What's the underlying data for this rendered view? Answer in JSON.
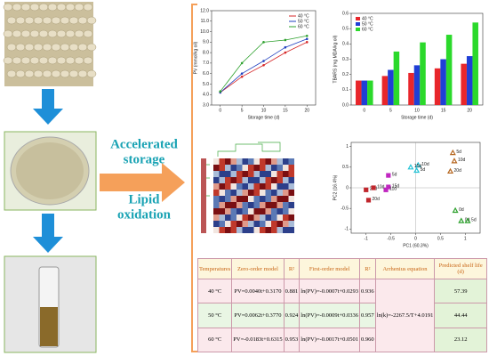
{
  "labels": {
    "accelerated": "Accelerated",
    "storage": "storage",
    "lipid": "Lipid",
    "oxidation": "oxidation"
  },
  "chart_data": [
    {
      "type": "line",
      "xlabel": "Storage time (d)",
      "ylabel": "PV (mmol/kg oil)",
      "x": [
        0,
        5,
        10,
        15,
        20
      ],
      "xlim": [
        -2,
        22
      ],
      "xticks": [
        0,
        5,
        10,
        15,
        20
      ],
      "ylim": [
        3,
        12
      ],
      "yticks": [
        {
          "value": 3,
          "label": "3.0"
        },
        {
          "value": 4,
          "label": "4.0"
        },
        {
          "value": 5,
          "label": "5.0"
        },
        {
          "value": 6,
          "label": "6.0"
        },
        {
          "value": 7,
          "label": "7.0"
        },
        {
          "value": 8,
          "label": "8.0"
        },
        {
          "value": 9,
          "label": "9.0"
        },
        {
          "value": 10,
          "label": "10.0"
        },
        {
          "value": 11,
          "label": "11.0"
        },
        {
          "value": 12,
          "label": "12.0"
        }
      ],
      "series": [
        {
          "name": "40 °C",
          "color": "#d62728",
          "values": [
            4.2,
            5.7,
            6.8,
            8.0,
            9.0
          ]
        },
        {
          "name": "50 °C",
          "color": "#1f3fbf",
          "values": [
            4.2,
            6.0,
            7.2,
            8.5,
            9.3
          ]
        },
        {
          "name": "60 °C",
          "color": "#2ca02c",
          "values": [
            4.3,
            7.0,
            9.0,
            9.2,
            9.6
          ]
        }
      ]
    },
    {
      "type": "bar",
      "xlabel": "Storage time (d)",
      "ylabel": "TBARS (mg MDA/kg oil)",
      "categories": [
        "0",
        "5",
        "10",
        "15",
        "20"
      ],
      "ylim": [
        0,
        0.6
      ],
      "yticks": [
        {
          "value": 0,
          "label": "0.0"
        },
        0.1,
        0.2,
        0.3,
        0.4,
        0.5,
        0.6
      ],
      "series": [
        {
          "name": "40 °C",
          "color": "#e8262b",
          "values": [
            0.16,
            0.19,
            0.21,
            0.24,
            0.27
          ]
        },
        {
          "name": "50 °C",
          "color": "#1f3fd6",
          "values": [
            0.16,
            0.23,
            0.26,
            0.3,
            0.32
          ]
        },
        {
          "name": "60 °C",
          "color": "#2bd92b",
          "values": [
            0.16,
            0.35,
            0.41,
            0.46,
            0.54
          ]
        }
      ]
    },
    {
      "type": "scatter",
      "xlabel": "PC1 (60.3%)",
      "ylabel": "PC2 (16.4%)",
      "xlim": [
        -1.3,
        1.3
      ],
      "xticks": [
        -1,
        -0.5,
        0,
        0.5,
        1
      ],
      "ylim": [
        -1.1,
        1.1
      ],
      "yticks": [
        -1,
        -0.5,
        0,
        0.5,
        1
      ],
      "series": [
        {
          "color": "#b5651d",
          "marker": "triangle",
          "x": [
            0.75,
            0.78,
            0.7
          ],
          "values": [
            0.85,
            0.65,
            0.4
          ],
          "point_labels": [
            "5d",
            "10d",
            "20d"
          ]
        },
        {
          "color": "#22c3d6",
          "marker": "triangle",
          "x": [
            0.05,
            -0.1,
            0.02
          ],
          "values": [
            0.55,
            0.5,
            0.42
          ],
          "point_labels": [
            "10d",
            "15d",
            "5d"
          ]
        },
        {
          "color": "#c026c0",
          "marker": "square",
          "x": [
            -0.55,
            -0.55,
            -0.6
          ],
          "values": [
            0.3,
            0.02,
            -0.05
          ],
          "point_labels": [
            "5d",
            "15d",
            "11d"
          ]
        },
        {
          "color": "#c0262c",
          "marker": "square",
          "x": [
            -1.0,
            -0.85,
            -0.95
          ],
          "values": [
            -0.05,
            0.0,
            -0.3
          ],
          "point_labels": [
            "20d",
            "10d",
            "20d"
          ]
        },
        {
          "color": "#2ca02c",
          "marker": "triangle",
          "x": [
            0.8,
            0.92,
            1.05
          ],
          "values": [
            -0.55,
            -0.8,
            -0.8
          ],
          "point_labels": [
            "0d",
            "0d",
            "5d"
          ]
        }
      ]
    }
  ],
  "table": {
    "header": [
      "Temperatures",
      "Zero-order model",
      "R²",
      "First-order model",
      "R²",
      "Arrhenius equation",
      "Predicted shelf life (d)"
    ],
    "arrhenius": "ln(k)=-2267.5/T+4.0191",
    "rows": [
      [
        "40 °C",
        "PV=0.0040t+0.3170",
        "0.881",
        "ln(PV)=-0.0007t+0.0293",
        "0.936",
        "57.39"
      ],
      [
        "50 °C",
        "PV=0.0062t+0.3770",
        "0.924",
        "ln(PV)=-0.0009t+0.0336",
        "0.957",
        "44.44"
      ],
      [
        "60 °C",
        "PV=-0.0183t+0.6315",
        "0.953",
        "ln(PV)=-0.0017t+0.0501",
        "0.960",
        "23.12"
      ]
    ]
  }
}
